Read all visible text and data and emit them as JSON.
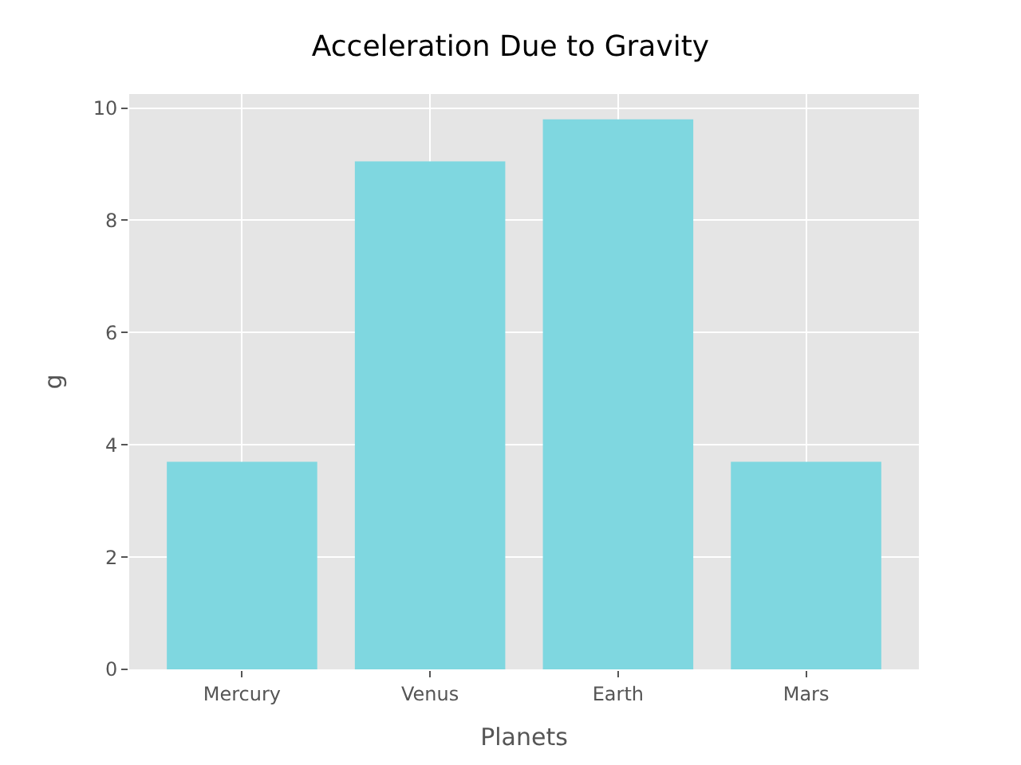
{
  "chart_data": {
    "type": "bar",
    "title": "Acceleration Due to Gravity",
    "xlabel": "Planets",
    "ylabel": "g",
    "categories": [
      "Mercury",
      "Venus",
      "Earth",
      "Mars"
    ],
    "values": [
      3.7,
      9.05,
      9.8,
      3.7
    ],
    "color": "#7fd7e0",
    "ylim": [
      0,
      10.25
    ],
    "yticks": [
      0,
      2,
      4,
      6,
      8,
      10
    ],
    "grid": true
  }
}
